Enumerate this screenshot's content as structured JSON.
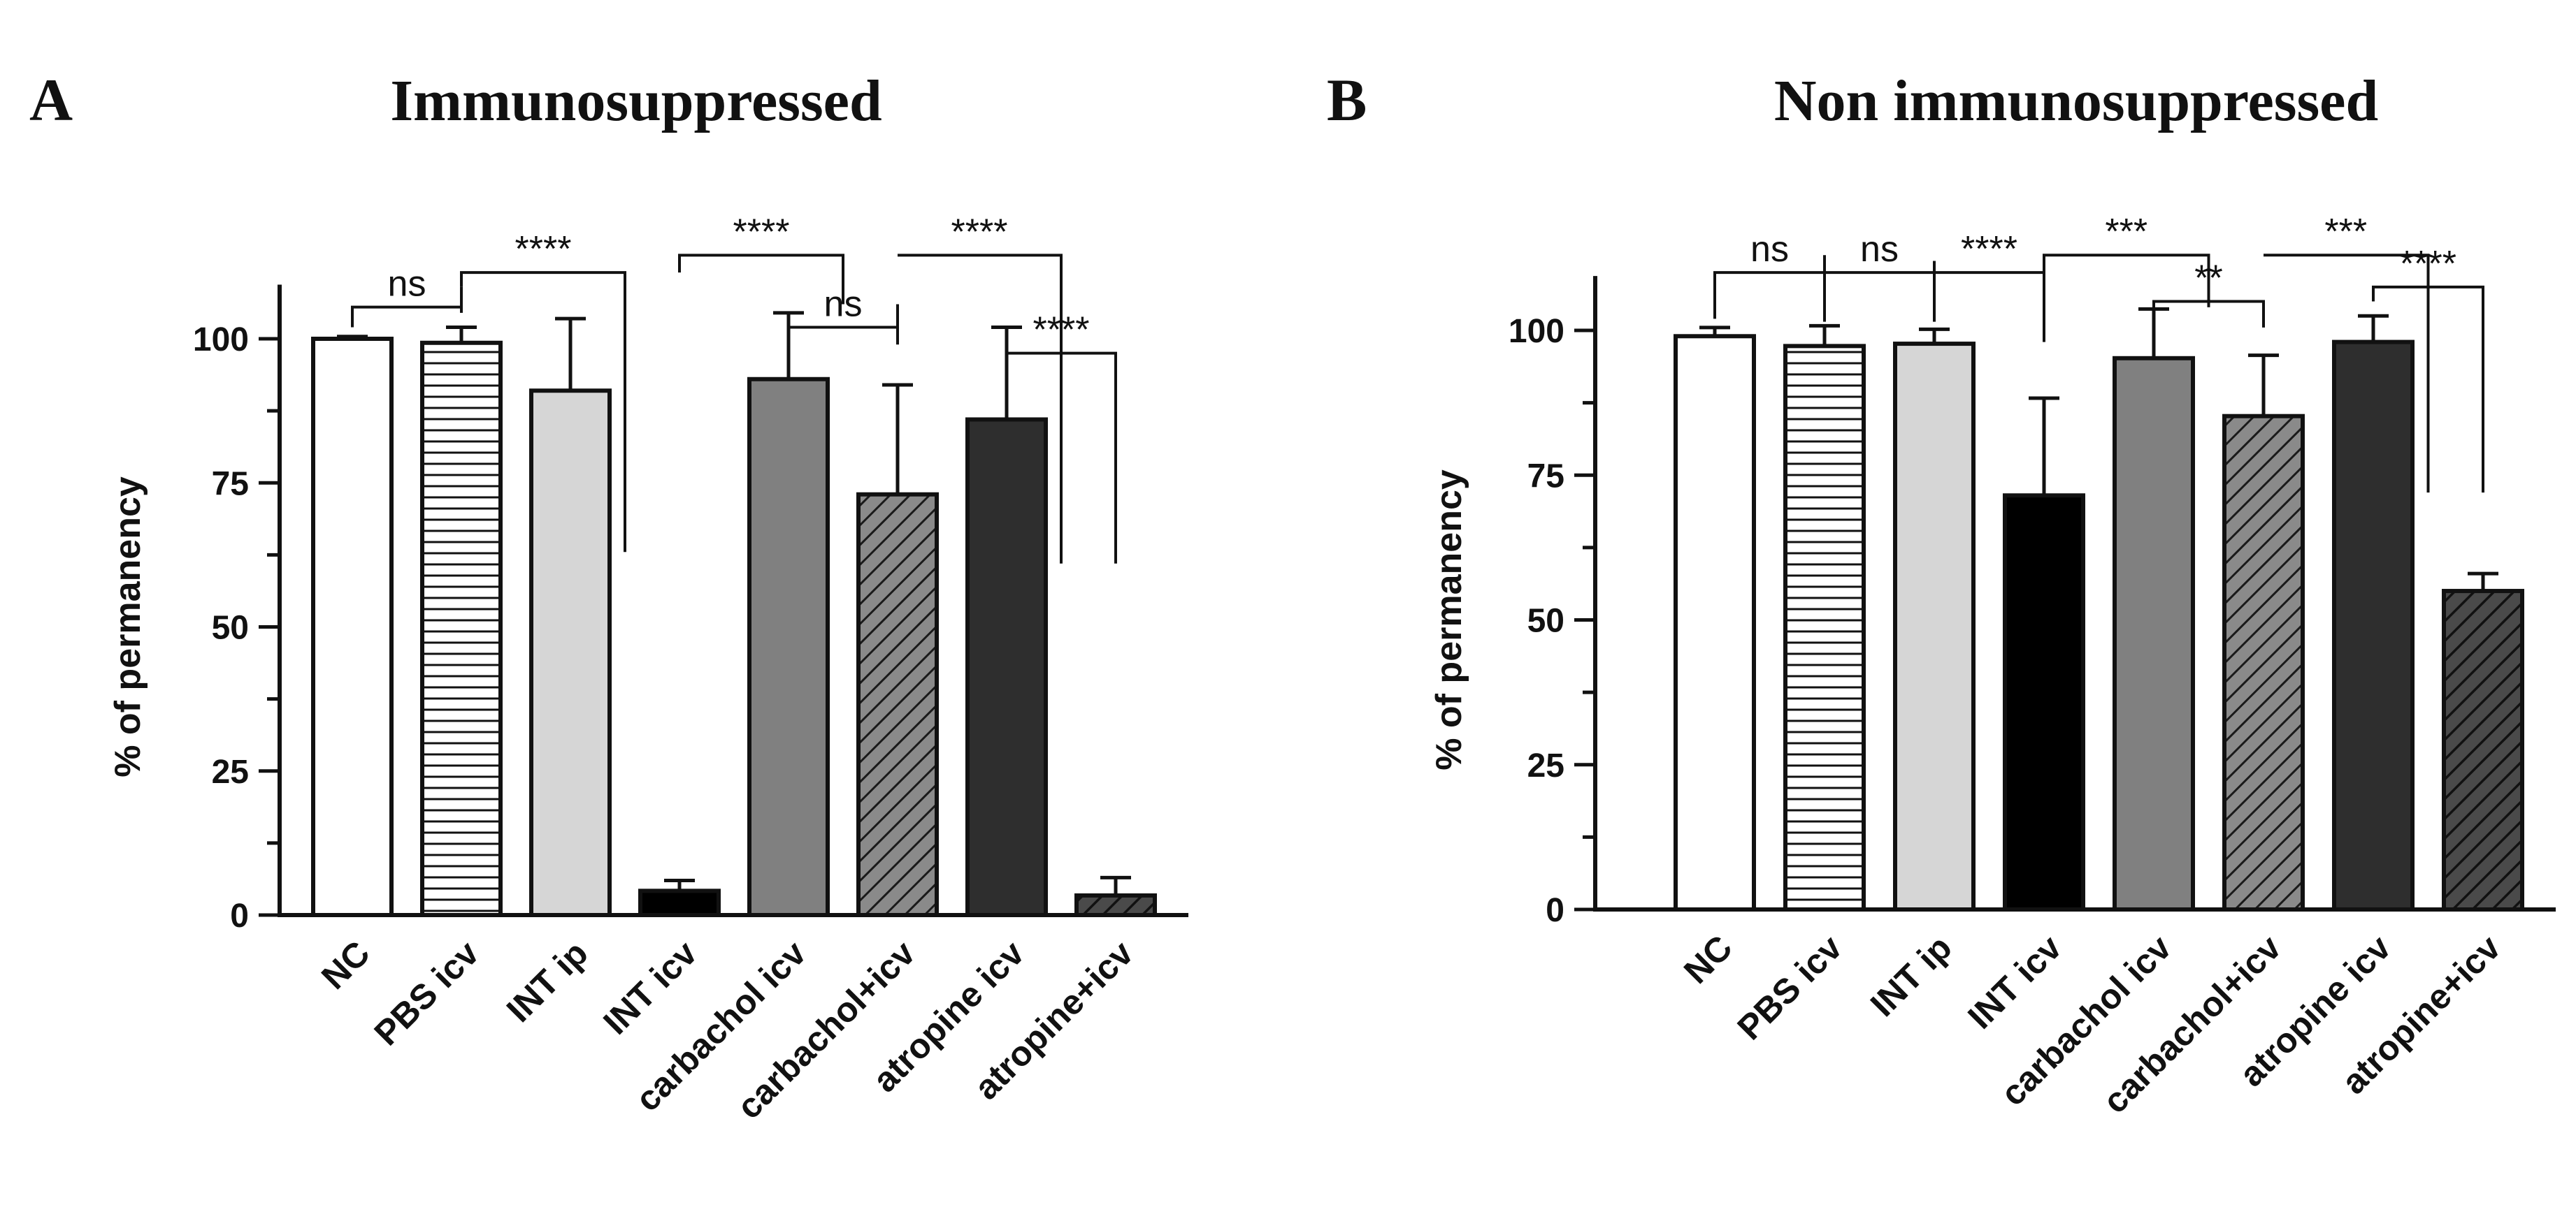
{
  "panels": [
    {
      "letter": "A",
      "title": "Immunosuppressed"
    },
    {
      "letter": "B",
      "title": "Non immunosuppressed"
    }
  ],
  "chart_data": [
    {
      "type": "bar",
      "title": "Immunosuppressed",
      "ylabel": "% of permanency",
      "xlabel": "",
      "ylim": [
        0,
        110
      ],
      "yticks": [
        0,
        25,
        50,
        75,
        100
      ],
      "categories": [
        "NC",
        "PBS icv",
        "INT ip",
        "INT icv",
        "carbachol icv",
        "carbachol+icv",
        "atropine icv",
        "atropine+icv"
      ],
      "values": [
        100,
        99.3,
        91,
        4.2,
        93,
        73,
        86,
        3.4
      ],
      "error": [
        0.4,
        2.7,
        12.5,
        1.8,
        11.5,
        19,
        16,
        3.1
      ],
      "bar_styles": [
        {
          "fill": "#ffffff",
          "pattern": "none"
        },
        {
          "fill": "#ffffff",
          "pattern": "hlines"
        },
        {
          "fill": "#d6d6d6",
          "pattern": "none"
        },
        {
          "fill": "#000000",
          "pattern": "none"
        },
        {
          "fill": "#808080",
          "pattern": "none"
        },
        {
          "fill": "#8a8a8a",
          "pattern": "diag"
        },
        {
          "fill": "#2e2e2e",
          "pattern": "none"
        },
        {
          "fill": "#3a3a3a",
          "pattern": "diag"
        }
      ],
      "significance": [
        {
          "label": "ns",
          "type": "bracket",
          "from": 0,
          "to": 1,
          "y": 105.5,
          "drop_from": 102,
          "drop_to": 104.5,
          "stem": 1,
          "stem_to": 109
        },
        {
          "label": "****",
          "type": "step",
          "from_y": 109,
          "x_from": 1,
          "x_to": 3,
          "x_frac_to": 0.5,
          "y_top": 111.5,
          "drop_to": 63
        },
        {
          "label": "****",
          "type": "step",
          "from_y": 111.5,
          "x_from": 3,
          "x_to": 5,
          "x_frac_to": 0.5,
          "y_top": 114.5,
          "drop_to": 106
        },
        {
          "label": "ns",
          "type": "bracket",
          "from": 4,
          "to": 5,
          "y": 102,
          "drop_from": 97.5,
          "drop_to": 99,
          "stem": 5,
          "stem_to": 106
        },
        {
          "label": "****",
          "type": "step",
          "from_y": 114.5,
          "x_from": 5,
          "x_to": 7,
          "x_frac_to": 0.5,
          "y_top": 114.5,
          "drop_to": 61
        },
        {
          "label": "****",
          "type": "bracket",
          "from": 6,
          "to": 7,
          "y": 97.5,
          "drop_from": 92,
          "drop_to": 61
        }
      ]
    },
    {
      "type": "bar",
      "title": "Non immunosuppressed",
      "ylabel": "% of permanency",
      "xlabel": "",
      "ylim": [
        0,
        110
      ],
      "yticks": [
        0,
        25,
        50,
        75,
        100
      ],
      "categories": [
        "NC",
        "PBS icv",
        "INT ip",
        "INT icv",
        "carbachol icv",
        "carbachol+icv",
        "atropine icv",
        "atropine+icv"
      ],
      "values": [
        99,
        97.3,
        97.7,
        71.5,
        95.2,
        85.2,
        98,
        55
      ],
      "error": [
        1.5,
        3.5,
        2.5,
        16.8,
        8.5,
        10.5,
        4.5,
        3
      ],
      "bar_styles": [
        {
          "fill": "#ffffff",
          "pattern": "none"
        },
        {
          "fill": "#ffffff",
          "pattern": "hlines"
        },
        {
          "fill": "#d6d6d6",
          "pattern": "none"
        },
        {
          "fill": "#000000",
          "pattern": "none"
        },
        {
          "fill": "#808080",
          "pattern": "none"
        },
        {
          "fill": "#8a8a8a",
          "pattern": "diag"
        },
        {
          "fill": "#2e2e2e",
          "pattern": "none"
        },
        {
          "fill": "#3a3a3a",
          "pattern": "diag"
        }
      ],
      "significance": [
        {
          "label": "ns",
          "type": "bracket",
          "from": 0,
          "to": 1,
          "y": 110,
          "drop_from": 102,
          "drop_to": 101.5,
          "stem": 1,
          "stem_to": 113
        },
        {
          "label": "ns",
          "type": "bracket",
          "from": 1,
          "to": 2,
          "y": 110,
          "drop_from": 102,
          "drop_to": 101.5,
          "stem": 2,
          "stem_to": 112
        },
        {
          "label": "****",
          "type": "step",
          "from_y": 108,
          "x_from": 2,
          "x_to": 3,
          "x_frac_to": 0,
          "y_top": 110,
          "drop_to": 98
        },
        {
          "label": "***",
          "type": "step",
          "from_y": 110,
          "x_from": 3,
          "x_to": 5,
          "x_frac_to": 0.5,
          "y_top": 113,
          "drop_to": 104
        },
        {
          "label": "**",
          "type": "bracket",
          "from": 4,
          "to": 5,
          "y": 105,
          "drop_from": 102,
          "drop_to": 100.5
        },
        {
          "label": "***",
          "type": "step",
          "from_y": 113,
          "x_from": 5,
          "x_to": 7,
          "x_frac_to": 0.5,
          "y_top": 113,
          "drop_to": 72
        },
        {
          "label": "****",
          "type": "bracket",
          "from": 6,
          "to": 7,
          "y": 107.5,
          "drop_from": 105,
          "drop_to": 72
        }
      ]
    }
  ]
}
